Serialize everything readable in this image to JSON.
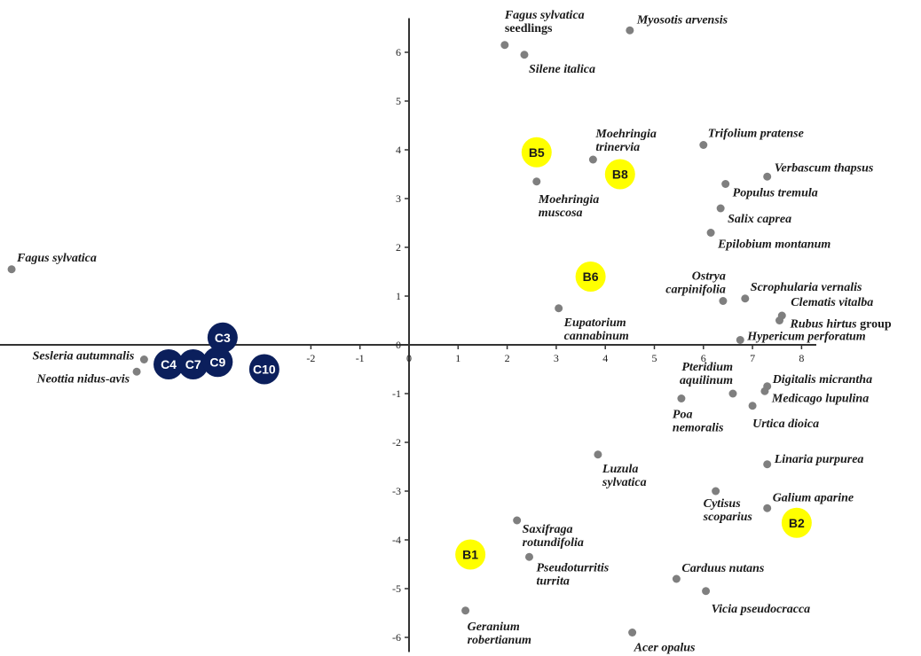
{
  "chart_data": {
    "type": "scatter",
    "xlim": [
      -8.4,
      8.3
    ],
    "ylim": [
      -6.3,
      6.7
    ],
    "x_ticks": [
      -2,
      -1,
      0,
      1,
      2,
      3,
      4,
      5,
      6,
      7,
      8
    ],
    "y_ticks": [
      -6,
      -5,
      -4,
      -3,
      -2,
      -1,
      0,
      1,
      2,
      3,
      4,
      5,
      6
    ],
    "grid": false,
    "colors": {
      "species_point": "#7f7f7f",
      "dark_sites": "#0b1f5c",
      "light_sites": "#ffff00",
      "axis": "#333333"
    },
    "species": [
      {
        "lines": [
          "Fagus sylvatica",
          "seedlings"
        ],
        "upright": "seedlings",
        "x": 1.95,
        "y": 6.15
      },
      {
        "lines": [
          "Myosotis arvensis"
        ],
        "x": 4.5,
        "y": 6.45
      },
      {
        "lines": [
          "Silene italica"
        ],
        "x": 2.35,
        "y": 5.95
      },
      {
        "lines": [
          "Moehringia",
          "trinervia"
        ],
        "x": 3.75,
        "y": 3.8
      },
      {
        "lines": [
          "Trifolium pratense"
        ],
        "x": 6.0,
        "y": 4.1
      },
      {
        "lines": [
          "Moehringia",
          "muscosa"
        ],
        "x": 2.6,
        "y": 3.35
      },
      {
        "lines": [
          "Verbascum thapsus"
        ],
        "x": 7.3,
        "y": 3.45
      },
      {
        "lines": [
          "Populus tremula"
        ],
        "x": 6.45,
        "y": 3.3
      },
      {
        "lines": [
          "Salix caprea"
        ],
        "x": 6.35,
        "y": 2.8
      },
      {
        "lines": [
          "Epilobium montanum"
        ],
        "x": 6.15,
        "y": 2.3
      },
      {
        "lines": [
          "Fagus sylvatica"
        ],
        "x": -8.1,
        "y": 1.55
      },
      {
        "lines": [
          "Ostrya",
          "carpinifolia"
        ],
        "x": 6.4,
        "y": 0.9
      },
      {
        "lines": [
          "Scrophularia vernalis"
        ],
        "x": 6.85,
        "y": 0.95
      },
      {
        "lines": [
          "Clematis vitalba"
        ],
        "x": 7.6,
        "y": 0.6
      },
      {
        "lines": [
          "Rubus hirtus group"
        ],
        "upright": "group",
        "x": 7.55,
        "y": 0.5
      },
      {
        "lines": [
          "Eupatorium",
          "cannabinum"
        ],
        "x": 3.05,
        "y": 0.75
      },
      {
        "lines": [
          "Hypericum perforatum"
        ],
        "x": 6.75,
        "y": 0.1
      },
      {
        "lines": [
          "Sesleria autumnalis"
        ],
        "x": -5.4,
        "y": -0.3
      },
      {
        "lines": [
          "Neottia nidus-avis"
        ],
        "x": -5.55,
        "y": -0.55
      },
      {
        "lines": [
          "Pteridium",
          "aquilinum"
        ],
        "x": 6.6,
        "y": -1.0
      },
      {
        "lines": [
          "Digitalis micrantha"
        ],
        "x": 7.3,
        "y": -0.85
      },
      {
        "lines": [
          "Medicago lupulina"
        ],
        "x": 7.25,
        "y": -0.95
      },
      {
        "lines": [
          "Poa",
          "nemoralis"
        ],
        "x": 5.55,
        "y": -1.1
      },
      {
        "lines": [
          "Urtica dioica"
        ],
        "x": 7.0,
        "y": -1.25
      },
      {
        "lines": [
          "Luzula",
          "sylvatica"
        ],
        "x": 3.85,
        "y": -2.25
      },
      {
        "lines": [
          "Linaria purpurea"
        ],
        "x": 7.3,
        "y": -2.45
      },
      {
        "lines": [
          "Cytisus",
          "scoparius"
        ],
        "x": 6.25,
        "y": -3.0
      },
      {
        "lines": [
          "Galium aparine"
        ],
        "x": 7.3,
        "y": -3.35
      },
      {
        "lines": [
          "Saxifraga",
          "rotundifolia"
        ],
        "x": 2.2,
        "y": -3.6
      },
      {
        "lines": [
          "Pseudoturritis",
          "turrita"
        ],
        "x": 2.45,
        "y": -4.35
      },
      {
        "lines": [
          "Carduus nutans"
        ],
        "x": 5.45,
        "y": -4.8
      },
      {
        "lines": [
          "Vicia pseudocracca"
        ],
        "x": 6.05,
        "y": -5.05
      },
      {
        "lines": [
          "Geranium",
          "robertianum"
        ],
        "x": 1.15,
        "y": -5.45
      },
      {
        "lines": [
          "Acer opalus"
        ],
        "x": 4.55,
        "y": -5.9
      }
    ],
    "sites": [
      {
        "label": "C3",
        "x": -3.8,
        "y": 0.15,
        "group": "dark"
      },
      {
        "label": "C4",
        "x": -4.9,
        "y": -0.4,
        "group": "dark"
      },
      {
        "label": "C7",
        "x": -4.4,
        "y": -0.4,
        "group": "dark"
      },
      {
        "label": "C9",
        "x": -3.9,
        "y": -0.35,
        "group": "dark"
      },
      {
        "label": "C10",
        "x": -2.95,
        "y": -0.5,
        "group": "dark"
      },
      {
        "label": "B5",
        "x": 2.6,
        "y": 3.95,
        "group": "light"
      },
      {
        "label": "B8",
        "x": 4.3,
        "y": 3.5,
        "group": "light"
      },
      {
        "label": "B6",
        "x": 3.7,
        "y": 1.4,
        "group": "light"
      },
      {
        "label": "B1",
        "x": 1.25,
        "y": -4.3,
        "group": "light"
      },
      {
        "label": "B2",
        "x": 7.9,
        "y": -3.65,
        "group": "light"
      }
    ]
  }
}
